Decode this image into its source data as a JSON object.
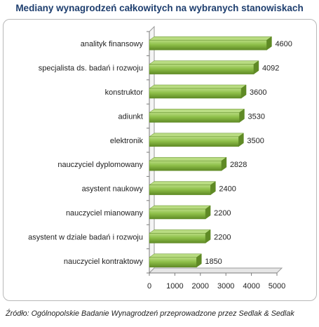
{
  "title": "Mediany wynagrodzeń całkowitych na wybranych stanowiskach",
  "source": "Źródło: Ogólnopolskie Badanie Wynagrodzeń przeprowadzone przez Sedlak & Sedlak",
  "colors": {
    "bar": "#8fc04a",
    "bar_dark": "#5f8a25",
    "bar_light": "#b9dc82",
    "title": "#1f3f6f"
  },
  "chart_data": {
    "type": "bar",
    "orientation": "horizontal",
    "categories": [
      "analityk finansowy",
      "specjalista ds. badań i rozwoju",
      "konstruktor",
      "adiunkt",
      "elektronik",
      "nauczyciel dyplomowany",
      "asystent naukowy",
      "nauczyciel mianowany",
      "asystent w dziale badań i rozwoju",
      "nauczyciel kontraktowy"
    ],
    "values": [
      4600,
      4092,
      3600,
      3530,
      3500,
      2828,
      2400,
      2200,
      2200,
      1850
    ],
    "xlim": [
      0,
      5000
    ],
    "xticks": [
      "0",
      "1000",
      "2000",
      "3000",
      "4000",
      "5000"
    ],
    "grid": false,
    "style": "3d"
  }
}
